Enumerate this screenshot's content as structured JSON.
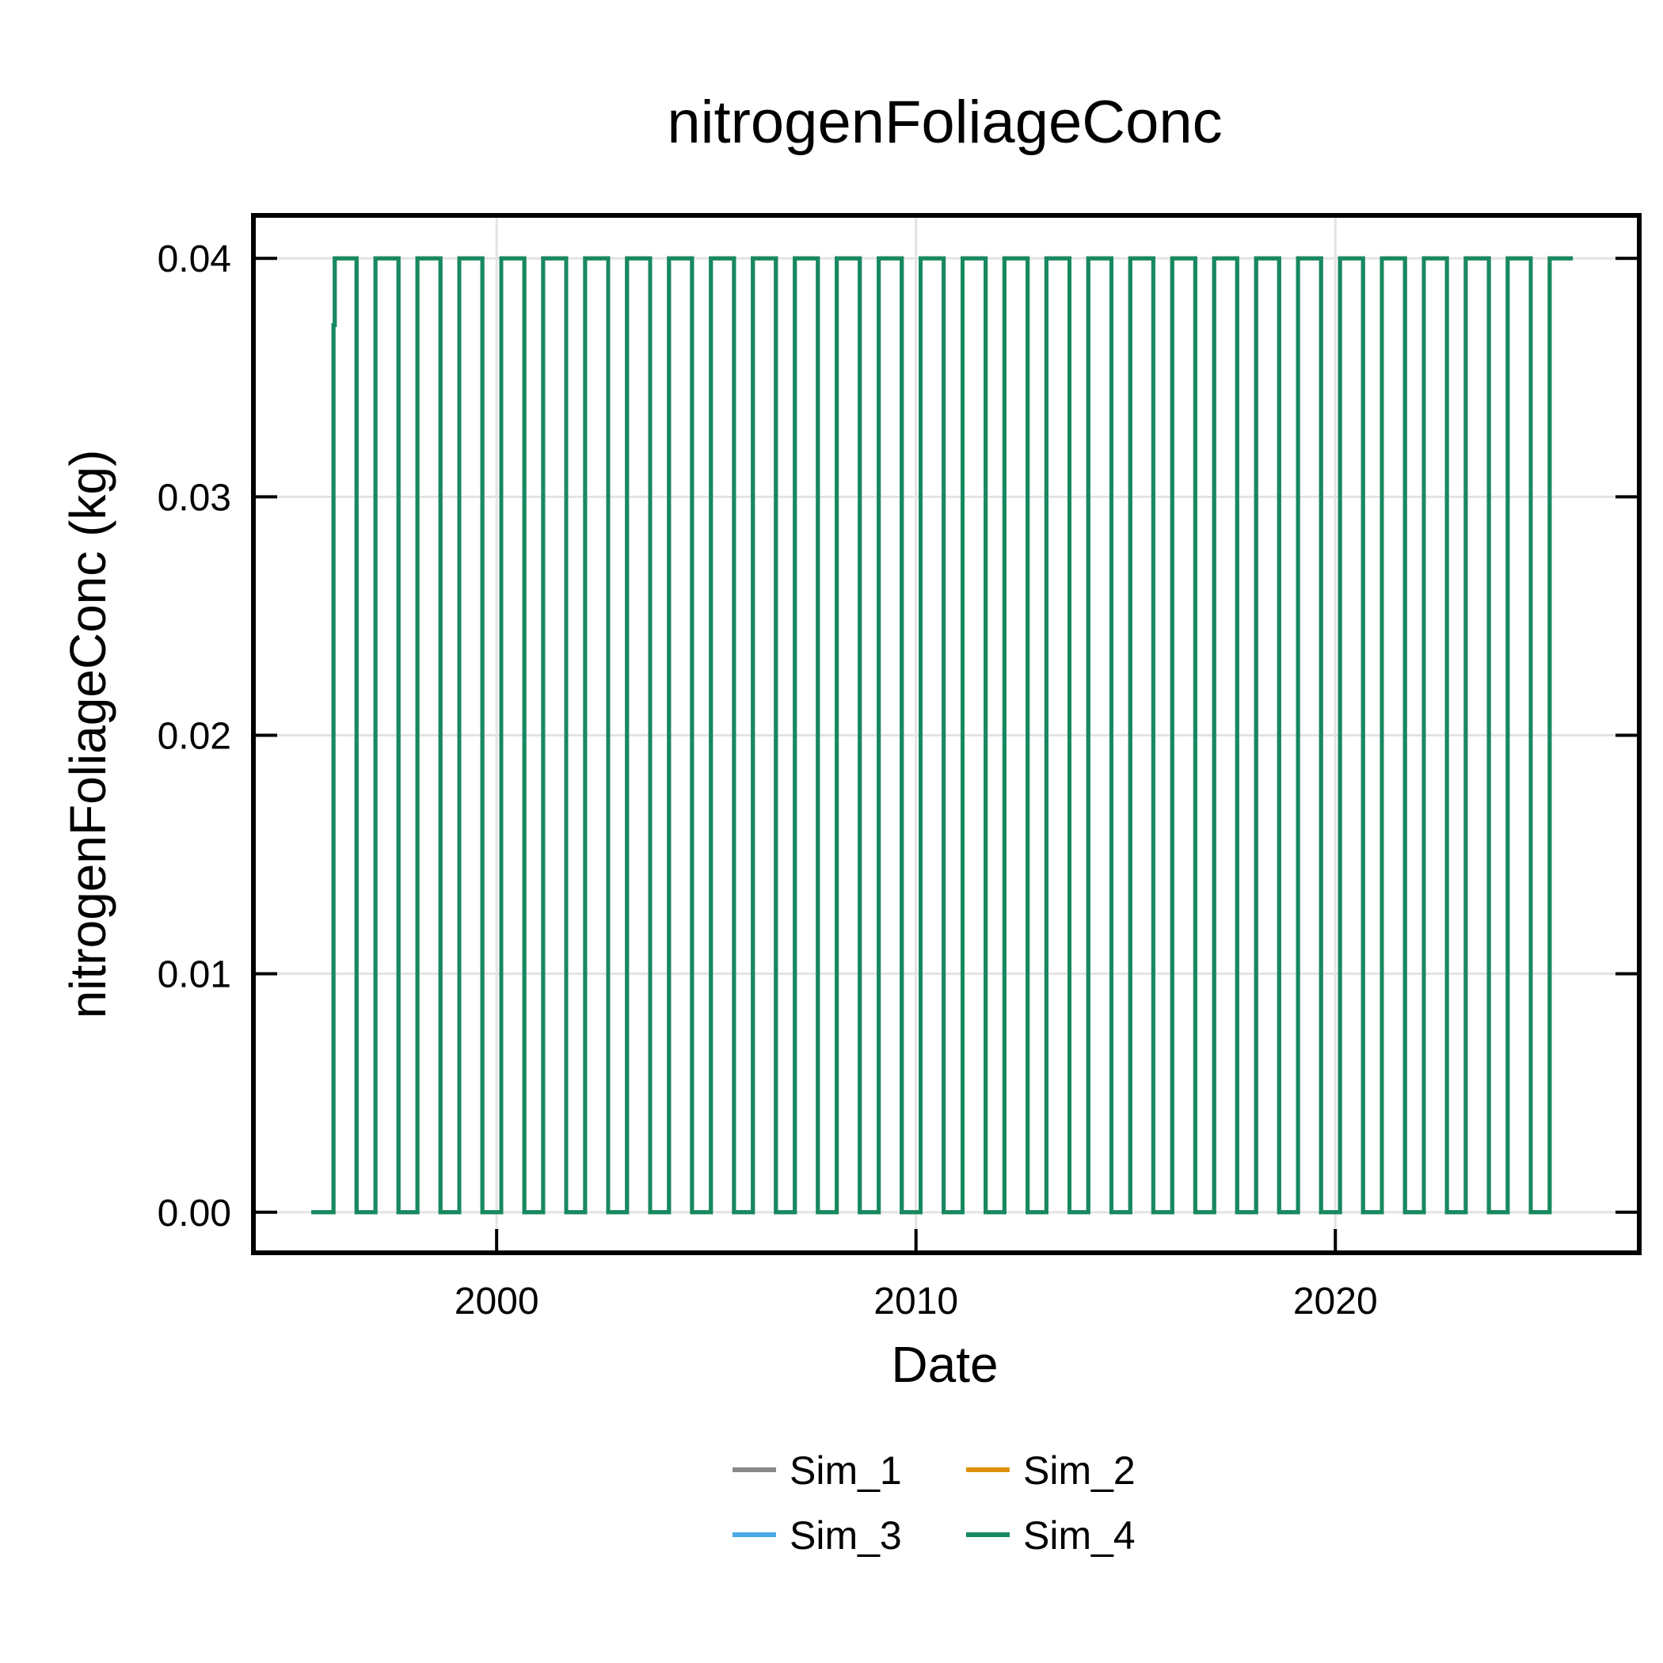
{
  "chart_data": {
    "type": "line",
    "title": "nitrogenFoliageConc",
    "xlabel": "Date",
    "ylabel": "nitrogenFoliageConc (kg)",
    "xlim": [
      "1994-03-15",
      "2027-04-01"
    ],
    "ylim": [
      -0.0017,
      0.0418
    ],
    "x_ticks": [
      "2000",
      "2010",
      "2020"
    ],
    "y_ticks": [
      "0.00",
      "0.01",
      "0.02",
      "0.03",
      "0.04"
    ],
    "grid": true,
    "legend": {
      "placement": "bottom-center",
      "columns": 2
    },
    "series_shape": {
      "description": "annual step cycle: 0.00 in winter, 0.04 in growing season",
      "low_value": 0.0,
      "high_value": 0.04,
      "first_year": 1996,
      "last_year": 2025,
      "start_date": "1995-08-01",
      "end_date": "2025-08-31",
      "initial_partial_value": 0.0372
    },
    "series": [
      {
        "name": "Sim_1",
        "color": "#888888"
      },
      {
        "name": "Sim_2",
        "color": "#dd9100"
      },
      {
        "name": "Sim_3",
        "color": "#4aa6e4"
      },
      {
        "name": "Sim_4",
        "color": "#17895f"
      }
    ]
  }
}
